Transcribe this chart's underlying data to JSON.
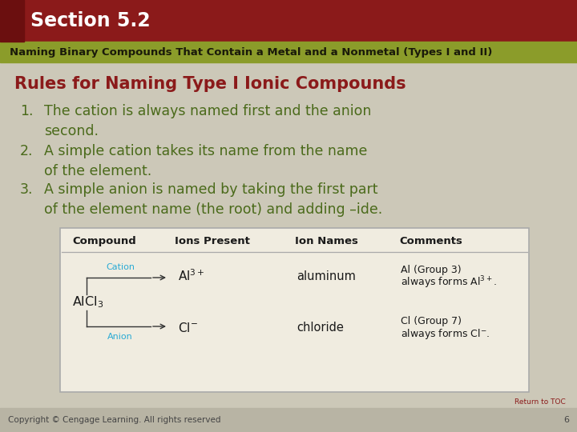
{
  "bg_color": "#ccc8b8",
  "header_bar_color": "#8b1a1a",
  "left_accent_color": "#6b0f0f",
  "subheader_bar_color": "#8b9c2a",
  "title_text": "Section 5.2",
  "title_color": "#ffffff",
  "subtitle_text": "Naming Binary Compounds That Contain a Metal and a Nonmetal (Types I and II)",
  "subtitle_color": "#1a1a0a",
  "rules_title": "Rules for Naming Type I Ionic Compounds",
  "rules_title_color": "#8b1a1a",
  "rules_color": "#4a6a1a",
  "rule1_num": "1.",
  "rule1": "The cation is always named first and the anion\nsecond.",
  "rule2_num": "2.",
  "rule2": "A simple cation takes its name from the name\nof the element.",
  "rule3_num": "3.",
  "rule3": "A simple anion is named by taking the first part\nof the element name (the root) and adding –ide.",
  "table_bg": "#f0ece0",
  "table_border": "#aaaaaa",
  "footer_text": "Copyright © Cengage Learning. All rights reserved",
  "footer_page": "6",
  "return_toc": "Return to TOC",
  "cation_color": "#29aad4",
  "anion_color": "#29aad4",
  "footer_bg": "#b8b4a4",
  "footer_text_color": "#444444",
  "return_toc_color": "#8b1a1a"
}
